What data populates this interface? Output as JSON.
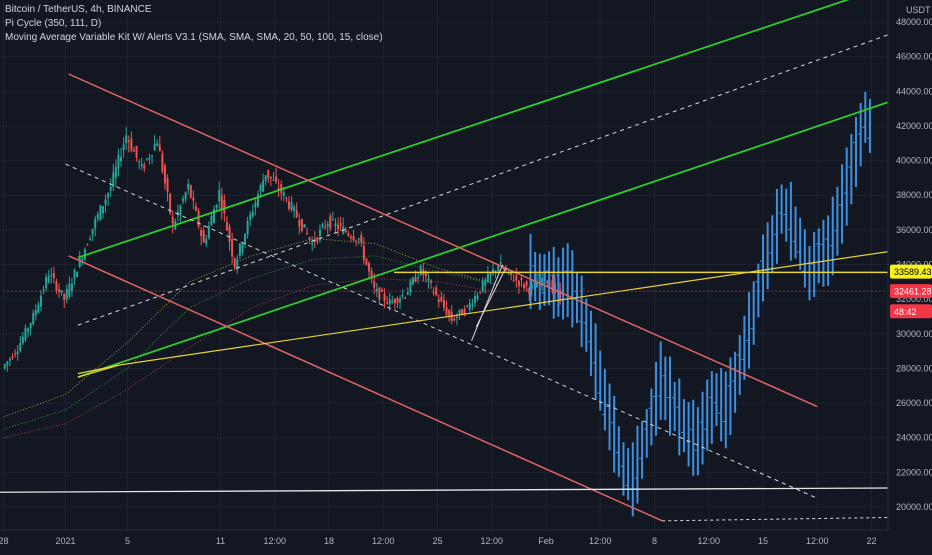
{
  "legend": {
    "symbol": "Bitcoin / TetherUS, 4h, BINANCE",
    "indicator1": "Pi Cycle (350, 111, D)",
    "indicator2": "Moving Average Variable Kit W/ Alerts V3.1 (SMA, SMA, SMA, 20, 50, 100, 15, close)"
  },
  "colors": {
    "background": "#131722",
    "grid": "#1e222d",
    "text": "#b2b5be",
    "up_candle": "#26a69a",
    "down_candle": "#ef5350",
    "projection_bars": "#3d8fe0",
    "green_channel": "#2ecc2e",
    "red_channel": "#e06464",
    "yellow_line": "#e6d23a",
    "white_dashed": "#d9d9d9",
    "white_line": "#e6e6e6"
  },
  "chart_data": {
    "type": "candlestick",
    "currency": "USDT",
    "y_axis": {
      "range": [
        19500,
        49000
      ],
      "ticks": [
        20000,
        22000,
        24000,
        26000,
        28000,
        30000,
        32000,
        34000,
        36000,
        38000,
        40000,
        42000,
        44000,
        46000,
        48000
      ],
      "tick_labels": [
        "20000.00",
        "22000.00",
        "24000.00",
        "26000.00",
        "28000.00",
        "30000.00",
        "32000.00",
        "34000.00",
        "36000.00",
        "38000.00",
        "40000.00",
        "42000.00",
        "44000.00",
        "46000.00",
        "48000.00"
      ]
    },
    "x_axis": {
      "ticks": [
        {
          "label": "28",
          "day": 0
        },
        {
          "label": "2021",
          "day": 4
        },
        {
          "label": "5",
          "day": 8
        },
        {
          "label": "11",
          "day": 14
        },
        {
          "label": "12:00",
          "day": 17.5
        },
        {
          "label": "18",
          "day": 21
        },
        {
          "label": "12:00",
          "day": 24.5
        },
        {
          "label": "25",
          "day": 28
        },
        {
          "label": "12:00",
          "day": 31.5
        },
        {
          "label": "Feb",
          "day": 35
        },
        {
          "label": "12:00",
          "day": 38.5
        },
        {
          "label": "8",
          "day": 42
        },
        {
          "label": "12:00",
          "day": 45.5
        },
        {
          "label": "15",
          "day": 49
        },
        {
          "label": "12:00",
          "day": 52.5
        },
        {
          "label": "22",
          "day": 56
        }
      ]
    },
    "price_labels": [
      {
        "text": "33589.43",
        "price": 33589.43,
        "style": "yellow"
      },
      {
        "text": "32461.28",
        "price": 32461.28,
        "style": "red"
      },
      {
        "text": "48:42",
        "price": 31300,
        "style": "red"
      }
    ],
    "price_series": [
      [
        0,
        28000
      ],
      [
        1,
        29200
      ],
      [
        2,
        31000
      ],
      [
        3,
        33500
      ],
      [
        4,
        32000
      ],
      [
        5,
        34200
      ],
      [
        6,
        36500
      ],
      [
        7,
        38500
      ],
      [
        8,
        41500
      ],
      [
        9,
        39500
      ],
      [
        10,
        41200
      ],
      [
        11,
        36200
      ],
      [
        12,
        38500
      ],
      [
        13,
        35200
      ],
      [
        14,
        38200
      ],
      [
        15,
        34000
      ],
      [
        16,
        36800
      ],
      [
        17,
        39300
      ],
      [
        18,
        38200
      ],
      [
        19,
        36800
      ],
      [
        20,
        35200
      ],
      [
        21,
        36500
      ],
      [
        22,
        36000
      ],
      [
        23,
        35500
      ],
      [
        24,
        32500
      ],
      [
        25,
        31800
      ],
      [
        26,
        32300
      ],
      [
        27,
        33700
      ],
      [
        28,
        32200
      ],
      [
        29,
        30800
      ],
      [
        30,
        31500
      ],
      [
        31,
        32800
      ],
      [
        32,
        34000
      ],
      [
        33,
        33200
      ],
      [
        34,
        32600
      ],
      [
        35,
        33300
      ],
      [
        36,
        32000
      ]
    ],
    "projection_series": [
      [
        34.0,
        33600
      ],
      [
        34.6,
        33000
      ],
      [
        35.2,
        33200
      ],
      [
        35.8,
        32700
      ],
      [
        36.4,
        33100
      ],
      [
        37.0,
        32100
      ],
      [
        37.6,
        30500
      ],
      [
        38.2,
        28400
      ],
      [
        38.8,
        26200
      ],
      [
        39.4,
        24200
      ],
      [
        40.0,
        22200
      ],
      [
        40.6,
        21600
      ],
      [
        41.2,
        23300
      ],
      [
        41.8,
        25200
      ],
      [
        42.4,
        27300
      ],
      [
        43.0,
        26400
      ],
      [
        43.6,
        25200
      ],
      [
        44.2,
        24200
      ],
      [
        44.8,
        23800
      ],
      [
        45.4,
        25300
      ],
      [
        46.0,
        26200
      ],
      [
        46.6,
        25600
      ],
      [
        47.2,
        27200
      ],
      [
        47.8,
        29200
      ],
      [
        48.4,
        31200
      ],
      [
        49.0,
        33800
      ],
      [
        49.6,
        35200
      ],
      [
        50.2,
        37200
      ],
      [
        50.8,
        36500
      ],
      [
        51.4,
        35200
      ],
      [
        52.0,
        33500
      ],
      [
        52.6,
        34500
      ],
      [
        53.2,
        34800
      ],
      [
        53.8,
        36500
      ],
      [
        54.4,
        38500
      ],
      [
        55.0,
        40500
      ],
      [
        55.6,
        42500
      ],
      [
        56.2,
        41500
      ]
    ]
  }
}
